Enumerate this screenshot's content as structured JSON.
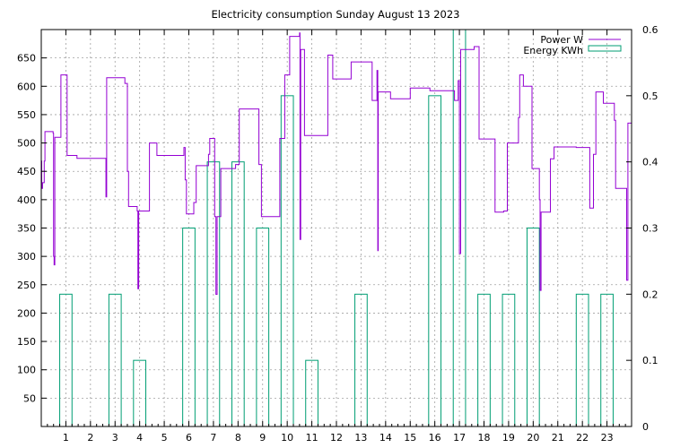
{
  "chart_data": {
    "type": "line",
    "title": "Electricity consumption Sunday August 13 2023",
    "x": {
      "ticks": [
        1,
        2,
        3,
        4,
        5,
        6,
        7,
        8,
        9,
        10,
        11,
        12,
        13,
        14,
        15,
        16,
        17,
        18,
        19,
        20,
        21,
        22,
        23
      ],
      "range": [
        0,
        24
      ]
    },
    "y_left": {
      "ticks": [
        50,
        100,
        150,
        200,
        250,
        300,
        350,
        400,
        450,
        500,
        550,
        600,
        650
      ],
      "range": [
        0,
        700
      ]
    },
    "y_right": {
      "ticks": [
        0,
        0.1,
        0.2,
        0.3,
        0.4,
        0.5,
        0.6
      ],
      "range": [
        0,
        0.6
      ]
    },
    "grid": true,
    "legend": "top-right",
    "series": [
      {
        "name": "Power W",
        "axis": "left",
        "style": "step",
        "color": "#9400d3",
        "points": [
          [
            0.0,
            468
          ],
          [
            0.02,
            420
          ],
          [
            0.05,
            430
          ],
          [
            0.12,
            468
          ],
          [
            0.15,
            520
          ],
          [
            0.48,
            517
          ],
          [
            0.5,
            300
          ],
          [
            0.52,
            285
          ],
          [
            0.55,
            510
          ],
          [
            0.62,
            510
          ],
          [
            0.8,
            620
          ],
          [
            1.05,
            478
          ],
          [
            1.45,
            473
          ],
          [
            2.6,
            473
          ],
          [
            2.63,
            405
          ],
          [
            2.66,
            615
          ],
          [
            3.4,
            605
          ],
          [
            3.5,
            450
          ],
          [
            3.55,
            388
          ],
          [
            3.9,
            380
          ],
          [
            3.93,
            243
          ],
          [
            3.96,
            380
          ],
          [
            4.4,
            500
          ],
          [
            4.7,
            478
          ],
          [
            5.8,
            492
          ],
          [
            5.85,
            435
          ],
          [
            5.9,
            375
          ],
          [
            6.2,
            395
          ],
          [
            6.3,
            460
          ],
          [
            6.8,
            480
          ],
          [
            6.85,
            508
          ],
          [
            7.05,
            370
          ],
          [
            7.1,
            233
          ],
          [
            7.15,
            370
          ],
          [
            7.3,
            455
          ],
          [
            7.9,
            462
          ],
          [
            8.05,
            560
          ],
          [
            8.6,
            560
          ],
          [
            8.85,
            462
          ],
          [
            8.95,
            370
          ],
          [
            9.7,
            508
          ],
          [
            9.9,
            620
          ],
          [
            10.1,
            688
          ],
          [
            10.5,
            694
          ],
          [
            10.52,
            330
          ],
          [
            10.55,
            665
          ],
          [
            10.7,
            513
          ],
          [
            11.65,
            655
          ],
          [
            11.85,
            613
          ],
          [
            12.6,
            643
          ],
          [
            13.45,
            575
          ],
          [
            13.65,
            628
          ],
          [
            13.68,
            310
          ],
          [
            13.7,
            590
          ],
          [
            14.2,
            578
          ],
          [
            15.0,
            597
          ],
          [
            15.8,
            592
          ],
          [
            16.8,
            575
          ],
          [
            16.95,
            610
          ],
          [
            17.0,
            305
          ],
          [
            17.05,
            665
          ],
          [
            17.6,
            670
          ],
          [
            17.8,
            507
          ],
          [
            18.45,
            378
          ],
          [
            18.8,
            380
          ],
          [
            18.95,
            500
          ],
          [
            19.4,
            545
          ],
          [
            19.45,
            620
          ],
          [
            19.6,
            600
          ],
          [
            19.95,
            455
          ],
          [
            20.25,
            400
          ],
          [
            20.28,
            240
          ],
          [
            20.32,
            378
          ],
          [
            20.7,
            472
          ],
          [
            20.85,
            493
          ],
          [
            21.75,
            492
          ],
          [
            22.3,
            385
          ],
          [
            22.45,
            480
          ],
          [
            22.55,
            590
          ],
          [
            22.85,
            570
          ],
          [
            23.3,
            540
          ],
          [
            23.35,
            420
          ],
          [
            23.8,
            258
          ],
          [
            23.85,
            535
          ],
          [
            24.0,
            535
          ]
        ]
      },
      {
        "name": "Energy KWh",
        "axis": "right",
        "style": "boxes",
        "color": "#009e73",
        "bar_width": 0.5,
        "centers": [
          1,
          3,
          4,
          6,
          7,
          8,
          9,
          10,
          11,
          13,
          16,
          17,
          18,
          19,
          20,
          22,
          23
        ],
        "values": [
          0.2,
          0.2,
          0.1,
          0.3,
          0.4,
          0.4,
          0.3,
          0.5,
          0.1,
          0.2,
          0.5,
          0.6,
          0.2,
          0.2,
          0.3,
          0.2,
          0.2
        ]
      }
    ]
  }
}
